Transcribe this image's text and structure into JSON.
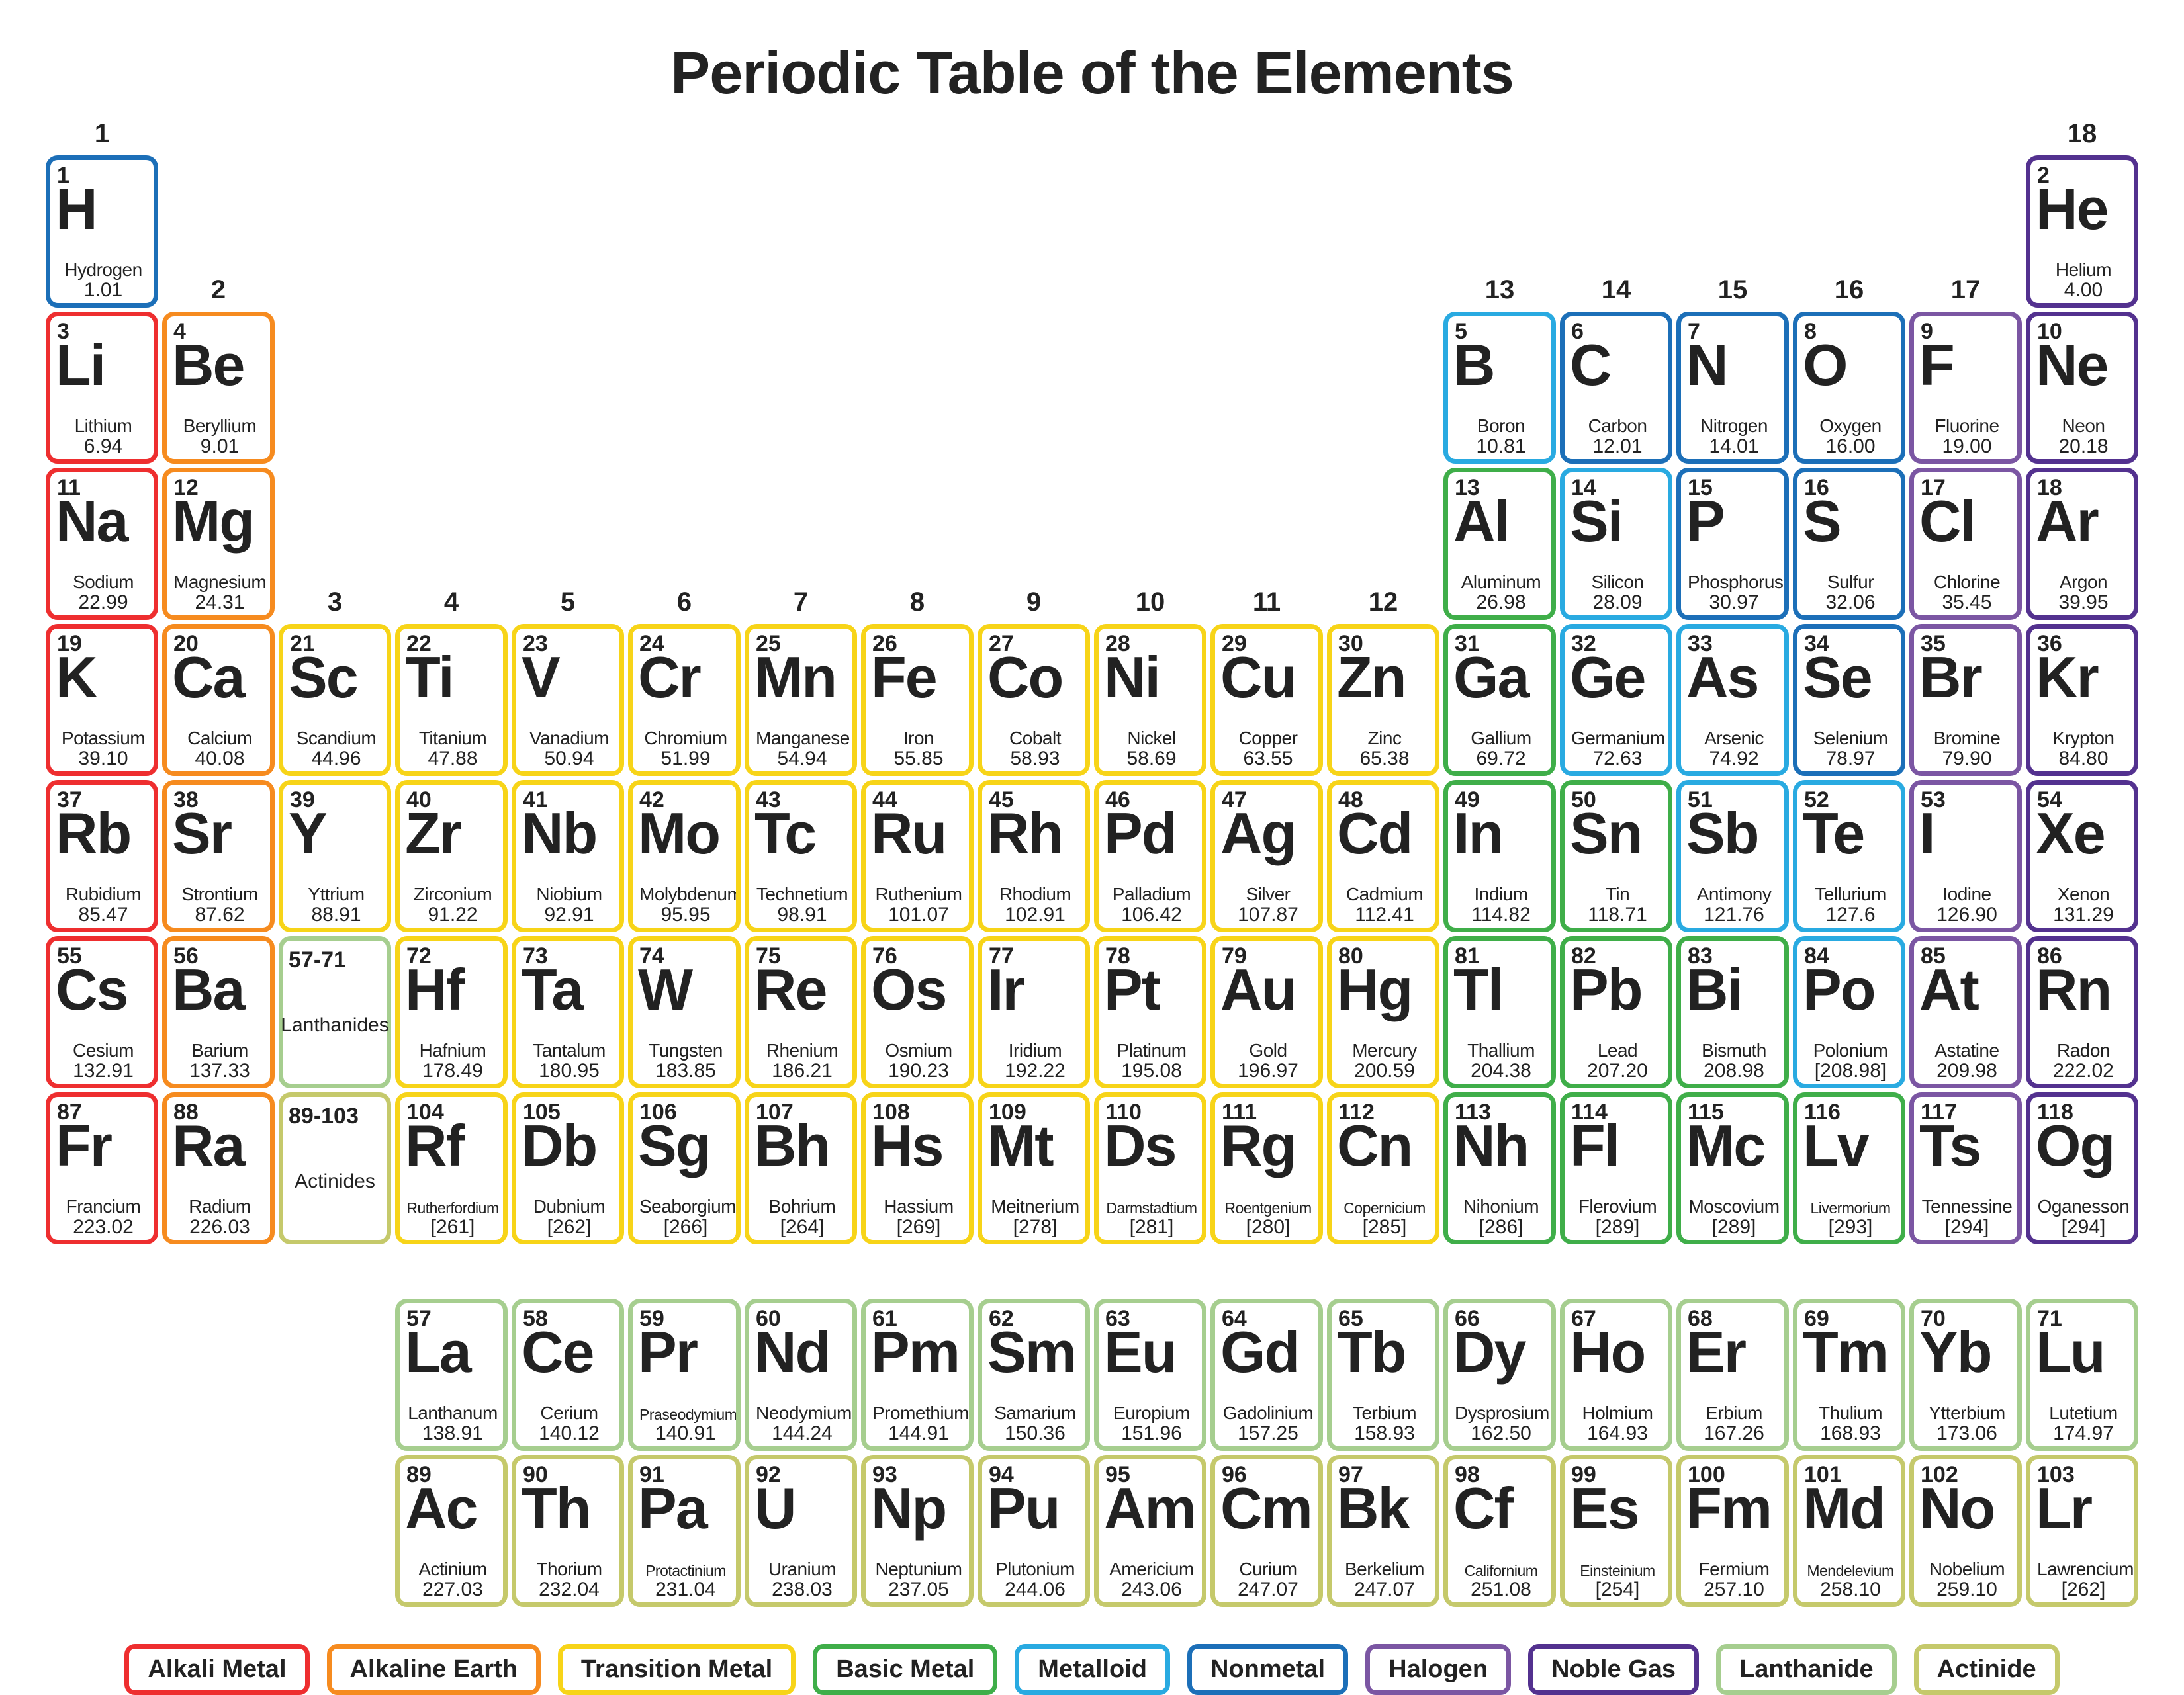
{
  "title": "Periodic Table of the Elements",
  "colors": {
    "alkali": "#ee2e2f",
    "alkaline": "#f68b1f",
    "transition": "#f7d418",
    "basic": "#3fae49",
    "metalloid": "#29aae1",
    "nonmetal": "#1c6fb8",
    "halogen": "#7b56a3",
    "noble": "#53318f",
    "lanthanide": "#a6ce8f",
    "actinide": "#c5c96b"
  },
  "legend": [
    {
      "label": "Alkali Metal",
      "cat": "alkali"
    },
    {
      "label": "Alkaline Earth",
      "cat": "alkaline"
    },
    {
      "label": "Transition Metal",
      "cat": "transition"
    },
    {
      "label": "Basic Metal",
      "cat": "basic"
    },
    {
      "label": "Metalloid",
      "cat": "metalloid"
    },
    {
      "label": "Nonmetal",
      "cat": "nonmetal"
    },
    {
      "label": "Halogen",
      "cat": "halogen"
    },
    {
      "label": "Noble Gas",
      "cat": "noble"
    },
    {
      "label": "Lanthanide",
      "cat": "lanthanide"
    },
    {
      "label": "Actinide",
      "cat": "actinide"
    }
  ],
  "group_labels": {
    "1": "1",
    "2": "2",
    "3": "3",
    "4": "4",
    "5": "5",
    "6": "6",
    "7": "7",
    "8": "8",
    "9": "9",
    "10": "10",
    "11": "11",
    "12": "12",
    "13": "13",
    "14": "14",
    "15": "15",
    "16": "16",
    "17": "17",
    "18": "18"
  },
  "placeholders": {
    "lan": {
      "range": "57-71",
      "label": "Lanthanides",
      "cat": "lanthanide"
    },
    "act": {
      "range": "89-103",
      "label": "Actinides",
      "cat": "actinide"
    }
  },
  "elements": [
    {
      "n": 1,
      "s": "H",
      "nm": "Hydrogen",
      "m": "1.01",
      "c": "nonmetal",
      "row": 1,
      "col": 1
    },
    {
      "n": 2,
      "s": "He",
      "nm": "Helium",
      "m": "4.00",
      "c": "noble",
      "row": 1,
      "col": 18
    },
    {
      "n": 3,
      "s": "Li",
      "nm": "Lithium",
      "m": "6.94",
      "c": "alkali",
      "row": 2,
      "col": 1
    },
    {
      "n": 4,
      "s": "Be",
      "nm": "Beryllium",
      "m": "9.01",
      "c": "alkaline",
      "row": 2,
      "col": 2
    },
    {
      "n": 5,
      "s": "B",
      "nm": "Boron",
      "m": "10.81",
      "c": "metalloid",
      "row": 2,
      "col": 13
    },
    {
      "n": 6,
      "s": "C",
      "nm": "Carbon",
      "m": "12.01",
      "c": "nonmetal",
      "row": 2,
      "col": 14
    },
    {
      "n": 7,
      "s": "N",
      "nm": "Nitrogen",
      "m": "14.01",
      "c": "nonmetal",
      "row": 2,
      "col": 15
    },
    {
      "n": 8,
      "s": "O",
      "nm": "Oxygen",
      "m": "16.00",
      "c": "nonmetal",
      "row": 2,
      "col": 16
    },
    {
      "n": 9,
      "s": "F",
      "nm": "Fluorine",
      "m": "19.00",
      "c": "halogen",
      "row": 2,
      "col": 17
    },
    {
      "n": 10,
      "s": "Ne",
      "nm": "Neon",
      "m": "20.18",
      "c": "noble",
      "row": 2,
      "col": 18
    },
    {
      "n": 11,
      "s": "Na",
      "nm": "Sodium",
      "m": "22.99",
      "c": "alkali",
      "row": 3,
      "col": 1
    },
    {
      "n": 12,
      "s": "Mg",
      "nm": "Magnesium",
      "m": "24.31",
      "c": "alkaline",
      "row": 3,
      "col": 2
    },
    {
      "n": 13,
      "s": "Al",
      "nm": "Aluminum",
      "m": "26.98",
      "c": "basic",
      "row": 3,
      "col": 13
    },
    {
      "n": 14,
      "s": "Si",
      "nm": "Silicon",
      "m": "28.09",
      "c": "metalloid",
      "row": 3,
      "col": 14
    },
    {
      "n": 15,
      "s": "P",
      "nm": "Phosphorus",
      "m": "30.97",
      "c": "nonmetal",
      "row": 3,
      "col": 15
    },
    {
      "n": 16,
      "s": "S",
      "nm": "Sulfur",
      "m": "32.06",
      "c": "nonmetal",
      "row": 3,
      "col": 16
    },
    {
      "n": 17,
      "s": "Cl",
      "nm": "Chlorine",
      "m": "35.45",
      "c": "halogen",
      "row": 3,
      "col": 17
    },
    {
      "n": 18,
      "s": "Ar",
      "nm": "Argon",
      "m": "39.95",
      "c": "noble",
      "row": 3,
      "col": 18
    },
    {
      "n": 19,
      "s": "K",
      "nm": "Potassium",
      "m": "39.10",
      "c": "alkali",
      "row": 4,
      "col": 1
    },
    {
      "n": 20,
      "s": "Ca",
      "nm": "Calcium",
      "m": "40.08",
      "c": "alkaline",
      "row": 4,
      "col": 2
    },
    {
      "n": 21,
      "s": "Sc",
      "nm": "Scandium",
      "m": "44.96",
      "c": "transition",
      "row": 4,
      "col": 3
    },
    {
      "n": 22,
      "s": "Ti",
      "nm": "Titanium",
      "m": "47.88",
      "c": "transition",
      "row": 4,
      "col": 4
    },
    {
      "n": 23,
      "s": "V",
      "nm": "Vanadium",
      "m": "50.94",
      "c": "transition",
      "row": 4,
      "col": 5
    },
    {
      "n": 24,
      "s": "Cr",
      "nm": "Chromium",
      "m": "51.99",
      "c": "transition",
      "row": 4,
      "col": 6
    },
    {
      "n": 25,
      "s": "Mn",
      "nm": "Manganese",
      "m": "54.94",
      "c": "transition",
      "row": 4,
      "col": 7
    },
    {
      "n": 26,
      "s": "Fe",
      "nm": "Iron",
      "m": "55.85",
      "c": "transition",
      "row": 4,
      "col": 8
    },
    {
      "n": 27,
      "s": "Co",
      "nm": "Cobalt",
      "m": "58.93",
      "c": "transition",
      "row": 4,
      "col": 9
    },
    {
      "n": 28,
      "s": "Ni",
      "nm": "Nickel",
      "m": "58.69",
      "c": "transition",
      "row": 4,
      "col": 10
    },
    {
      "n": 29,
      "s": "Cu",
      "nm": "Copper",
      "m": "63.55",
      "c": "transition",
      "row": 4,
      "col": 11
    },
    {
      "n": 30,
      "s": "Zn",
      "nm": "Zinc",
      "m": "65.38",
      "c": "transition",
      "row": 4,
      "col": 12
    },
    {
      "n": 31,
      "s": "Ga",
      "nm": "Gallium",
      "m": "69.72",
      "c": "basic",
      "row": 4,
      "col": 13
    },
    {
      "n": 32,
      "s": "Ge",
      "nm": "Germanium",
      "m": "72.63",
      "c": "metalloid",
      "row": 4,
      "col": 14
    },
    {
      "n": 33,
      "s": "As",
      "nm": "Arsenic",
      "m": "74.92",
      "c": "metalloid",
      "row": 4,
      "col": 15
    },
    {
      "n": 34,
      "s": "Se",
      "nm": "Selenium",
      "m": "78.97",
      "c": "nonmetal",
      "row": 4,
      "col": 16
    },
    {
      "n": 35,
      "s": "Br",
      "nm": "Bromine",
      "m": "79.90",
      "c": "halogen",
      "row": 4,
      "col": 17
    },
    {
      "n": 36,
      "s": "Kr",
      "nm": "Krypton",
      "m": "84.80",
      "c": "noble",
      "row": 4,
      "col": 18
    },
    {
      "n": 37,
      "s": "Rb",
      "nm": "Rubidium",
      "m": "85.47",
      "c": "alkali",
      "row": 5,
      "col": 1
    },
    {
      "n": 38,
      "s": "Sr",
      "nm": "Strontium",
      "m": "87.62",
      "c": "alkaline",
      "row": 5,
      "col": 2
    },
    {
      "n": 39,
      "s": "Y",
      "nm": "Yttrium",
      "m": "88.91",
      "c": "transition",
      "row": 5,
      "col": 3
    },
    {
      "n": 40,
      "s": "Zr",
      "nm": "Zirconium",
      "m": "91.22",
      "c": "transition",
      "row": 5,
      "col": 4
    },
    {
      "n": 41,
      "s": "Nb",
      "nm": "Niobium",
      "m": "92.91",
      "c": "transition",
      "row": 5,
      "col": 5
    },
    {
      "n": 42,
      "s": "Mo",
      "nm": "Molybdenum",
      "m": "95.95",
      "c": "transition",
      "row": 5,
      "col": 6
    },
    {
      "n": 43,
      "s": "Tc",
      "nm": "Technetium",
      "m": "98.91",
      "c": "transition",
      "row": 5,
      "col": 7
    },
    {
      "n": 44,
      "s": "Ru",
      "nm": "Ruthenium",
      "m": "101.07",
      "c": "transition",
      "row": 5,
      "col": 8
    },
    {
      "n": 45,
      "s": "Rh",
      "nm": "Rhodium",
      "m": "102.91",
      "c": "transition",
      "row": 5,
      "col": 9
    },
    {
      "n": 46,
      "s": "Pd",
      "nm": "Palladium",
      "m": "106.42",
      "c": "transition",
      "row": 5,
      "col": 10
    },
    {
      "n": 47,
      "s": "Ag",
      "nm": "Silver",
      "m": "107.87",
      "c": "transition",
      "row": 5,
      "col": 11
    },
    {
      "n": 48,
      "s": "Cd",
      "nm": "Cadmium",
      "m": "112.41",
      "c": "transition",
      "row": 5,
      "col": 12
    },
    {
      "n": 49,
      "s": "In",
      "nm": "Indium",
      "m": "114.82",
      "c": "basic",
      "row": 5,
      "col": 13
    },
    {
      "n": 50,
      "s": "Sn",
      "nm": "Tin",
      "m": "118.71",
      "c": "basic",
      "row": 5,
      "col": 14
    },
    {
      "n": 51,
      "s": "Sb",
      "nm": "Antimony",
      "m": "121.76",
      "c": "metalloid",
      "row": 5,
      "col": 15
    },
    {
      "n": 52,
      "s": "Te",
      "nm": "Tellurium",
      "m": "127.6",
      "c": "metalloid",
      "row": 5,
      "col": 16
    },
    {
      "n": 53,
      "s": "I",
      "nm": "Iodine",
      "m": "126.90",
      "c": "halogen",
      "row": 5,
      "col": 17
    },
    {
      "n": 54,
      "s": "Xe",
      "nm": "Xenon",
      "m": "131.29",
      "c": "noble",
      "row": 5,
      "col": 18
    },
    {
      "n": 55,
      "s": "Cs",
      "nm": "Cesium",
      "m": "132.91",
      "c": "alkali",
      "row": 6,
      "col": 1
    },
    {
      "n": 56,
      "s": "Ba",
      "nm": "Barium",
      "m": "137.33",
      "c": "alkaline",
      "row": 6,
      "col": 2
    },
    {
      "n": 72,
      "s": "Hf",
      "nm": "Hafnium",
      "m": "178.49",
      "c": "transition",
      "row": 6,
      "col": 4
    },
    {
      "n": 73,
      "s": "Ta",
      "nm": "Tantalum",
      "m": "180.95",
      "c": "transition",
      "row": 6,
      "col": 5
    },
    {
      "n": 74,
      "s": "W",
      "nm": "Tungsten",
      "m": "183.85",
      "c": "transition",
      "row": 6,
      "col": 6
    },
    {
      "n": 75,
      "s": "Re",
      "nm": "Rhenium",
      "m": "186.21",
      "c": "transition",
      "row": 6,
      "col": 7
    },
    {
      "n": 76,
      "s": "Os",
      "nm": "Osmium",
      "m": "190.23",
      "c": "transition",
      "row": 6,
      "col": 8
    },
    {
      "n": 77,
      "s": "Ir",
      "nm": "Iridium",
      "m": "192.22",
      "c": "transition",
      "row": 6,
      "col": 9
    },
    {
      "n": 78,
      "s": "Pt",
      "nm": "Platinum",
      "m": "195.08",
      "c": "transition",
      "row": 6,
      "col": 10
    },
    {
      "n": 79,
      "s": "Au",
      "nm": "Gold",
      "m": "196.97",
      "c": "transition",
      "row": 6,
      "col": 11
    },
    {
      "n": 80,
      "s": "Hg",
      "nm": "Mercury",
      "m": "200.59",
      "c": "transition",
      "row": 6,
      "col": 12
    },
    {
      "n": 81,
      "s": "Tl",
      "nm": "Thallium",
      "m": "204.38",
      "c": "basic",
      "row": 6,
      "col": 13
    },
    {
      "n": 82,
      "s": "Pb",
      "nm": "Lead",
      "m": "207.20",
      "c": "basic",
      "row": 6,
      "col": 14
    },
    {
      "n": 83,
      "s": "Bi",
      "nm": "Bismuth",
      "m": "208.98",
      "c": "basic",
      "row": 6,
      "col": 15
    },
    {
      "n": 84,
      "s": "Po",
      "nm": "Polonium",
      "m": "[208.98]",
      "c": "metalloid",
      "row": 6,
      "col": 16
    },
    {
      "n": 85,
      "s": "At",
      "nm": "Astatine",
      "m": "209.98",
      "c": "halogen",
      "row": 6,
      "col": 17
    },
    {
      "n": 86,
      "s": "Rn",
      "nm": "Radon",
      "m": "222.02",
      "c": "noble",
      "row": 6,
      "col": 18
    },
    {
      "n": 87,
      "s": "Fr",
      "nm": "Francium",
      "m": "223.02",
      "c": "alkali",
      "row": 7,
      "col": 1
    },
    {
      "n": 88,
      "s": "Ra",
      "nm": "Radium",
      "m": "226.03",
      "c": "alkaline",
      "row": 7,
      "col": 2
    },
    {
      "n": 104,
      "s": "Rf",
      "nm": "Rutherfordium",
      "m": "[261]",
      "c": "transition",
      "row": 7,
      "col": 4
    },
    {
      "n": 105,
      "s": "Db",
      "nm": "Dubnium",
      "m": "[262]",
      "c": "transition",
      "row": 7,
      "col": 5
    },
    {
      "n": 106,
      "s": "Sg",
      "nm": "Seaborgium",
      "m": "[266]",
      "c": "transition",
      "row": 7,
      "col": 6
    },
    {
      "n": 107,
      "s": "Bh",
      "nm": "Bohrium",
      "m": "[264]",
      "c": "transition",
      "row": 7,
      "col": 7
    },
    {
      "n": 108,
      "s": "Hs",
      "nm": "Hassium",
      "m": "[269]",
      "c": "transition",
      "row": 7,
      "col": 8
    },
    {
      "n": 109,
      "s": "Mt",
      "nm": "Meitnerium",
      "m": "[278]",
      "c": "transition",
      "row": 7,
      "col": 9
    },
    {
      "n": 110,
      "s": "Ds",
      "nm": "Darmstadtium",
      "m": "[281]",
      "c": "transition",
      "row": 7,
      "col": 10
    },
    {
      "n": 111,
      "s": "Rg",
      "nm": "Roentgenium",
      "m": "[280]",
      "c": "transition",
      "row": 7,
      "col": 11
    },
    {
      "n": 112,
      "s": "Cn",
      "nm": "Copernicium",
      "m": "[285]",
      "c": "transition",
      "row": 7,
      "col": 12
    },
    {
      "n": 113,
      "s": "Nh",
      "nm": "Nihonium",
      "m": "[286]",
      "c": "basic",
      "row": 7,
      "col": 13
    },
    {
      "n": 114,
      "s": "Fl",
      "nm": "Flerovium",
      "m": "[289]",
      "c": "basic",
      "row": 7,
      "col": 14
    },
    {
      "n": 115,
      "s": "Mc",
      "nm": "Moscovium",
      "m": "[289]",
      "c": "basic",
      "row": 7,
      "col": 15
    },
    {
      "n": 116,
      "s": "Lv",
      "nm": "Livermorium",
      "m": "[293]",
      "c": "basic",
      "row": 7,
      "col": 16
    },
    {
      "n": 117,
      "s": "Ts",
      "nm": "Tennessine",
      "m": "[294]",
      "c": "halogen",
      "row": 7,
      "col": 17
    },
    {
      "n": 118,
      "s": "Og",
      "nm": "Oganesson",
      "m": "[294]",
      "c": "noble",
      "row": 7,
      "col": 18
    },
    {
      "n": 57,
      "s": "La",
      "nm": "Lanthanum",
      "m": "138.91",
      "c": "lanthanide",
      "row": 9,
      "col": 4
    },
    {
      "n": 58,
      "s": "Ce",
      "nm": "Cerium",
      "m": "140.12",
      "c": "lanthanide",
      "row": 9,
      "col": 5
    },
    {
      "n": 59,
      "s": "Pr",
      "nm": "Praseodymium",
      "m": "140.91",
      "c": "lanthanide",
      "row": 9,
      "col": 6
    },
    {
      "n": 60,
      "s": "Nd",
      "nm": "Neodymium",
      "m": "144.24",
      "c": "lanthanide",
      "row": 9,
      "col": 7
    },
    {
      "n": 61,
      "s": "Pm",
      "nm": "Promethium",
      "m": "144.91",
      "c": "lanthanide",
      "row": 9,
      "col": 8
    },
    {
      "n": 62,
      "s": "Sm",
      "nm": "Samarium",
      "m": "150.36",
      "c": "lanthanide",
      "row": 9,
      "col": 9
    },
    {
      "n": 63,
      "s": "Eu",
      "nm": "Europium",
      "m": "151.96",
      "c": "lanthanide",
      "row": 9,
      "col": 10
    },
    {
      "n": 64,
      "s": "Gd",
      "nm": "Gadolinium",
      "m": "157.25",
      "c": "lanthanide",
      "row": 9,
      "col": 11
    },
    {
      "n": 65,
      "s": "Tb",
      "nm": "Terbium",
      "m": "158.93",
      "c": "lanthanide",
      "row": 9,
      "col": 12
    },
    {
      "n": 66,
      "s": "Dy",
      "nm": "Dysprosium",
      "m": "162.50",
      "c": "lanthanide",
      "row": 9,
      "col": 13
    },
    {
      "n": 67,
      "s": "Ho",
      "nm": "Holmium",
      "m": "164.93",
      "c": "lanthanide",
      "row": 9,
      "col": 14
    },
    {
      "n": 68,
      "s": "Er",
      "nm": "Erbium",
      "m": "167.26",
      "c": "lanthanide",
      "row": 9,
      "col": 15
    },
    {
      "n": 69,
      "s": "Tm",
      "nm": "Thulium",
      "m": "168.93",
      "c": "lanthanide",
      "row": 9,
      "col": 16
    },
    {
      "n": 70,
      "s": "Yb",
      "nm": "Ytterbium",
      "m": "173.06",
      "c": "lanthanide",
      "row": 9,
      "col": 17
    },
    {
      "n": 71,
      "s": "Lu",
      "nm": "Lutetium",
      "m": "174.97",
      "c": "lanthanide",
      "row": 9,
      "col": 18
    },
    {
      "n": 89,
      "s": "Ac",
      "nm": "Actinium",
      "m": "227.03",
      "c": "actinide",
      "row": 10,
      "col": 4
    },
    {
      "n": 90,
      "s": "Th",
      "nm": "Thorium",
      "m": "232.04",
      "c": "actinide",
      "row": 10,
      "col": 5
    },
    {
      "n": 91,
      "s": "Pa",
      "nm": "Protactinium",
      "m": "231.04",
      "c": "actinide",
      "row": 10,
      "col": 6
    },
    {
      "n": 92,
      "s": "U",
      "nm": "Uranium",
      "m": "238.03",
      "c": "actinide",
      "row": 10,
      "col": 7
    },
    {
      "n": 93,
      "s": "Np",
      "nm": "Neptunium",
      "m": "237.05",
      "c": "actinide",
      "row": 10,
      "col": 8
    },
    {
      "n": 94,
      "s": "Pu",
      "nm": "Plutonium",
      "m": "244.06",
      "c": "actinide",
      "row": 10,
      "col": 9
    },
    {
      "n": 95,
      "s": "Am",
      "nm": "Americium",
      "m": "243.06",
      "c": "actinide",
      "row": 10,
      "col": 10
    },
    {
      "n": 96,
      "s": "Cm",
      "nm": "Curium",
      "m": "247.07",
      "c": "actinide",
      "row": 10,
      "col": 11
    },
    {
      "n": 97,
      "s": "Bk",
      "nm": "Berkelium",
      "m": "247.07",
      "c": "actinide",
      "row": 10,
      "col": 12
    },
    {
      "n": 98,
      "s": "Cf",
      "nm": "Californium",
      "m": "251.08",
      "c": "actinide",
      "row": 10,
      "col": 13
    },
    {
      "n": 99,
      "s": "Es",
      "nm": "Einsteinium",
      "m": "[254]",
      "c": "actinide",
      "row": 10,
      "col": 14
    },
    {
      "n": 100,
      "s": "Fm",
      "nm": "Fermium",
      "m": "257.10",
      "c": "actinide",
      "row": 10,
      "col": 15
    },
    {
      "n": 101,
      "s": "Md",
      "nm": "Mendelevium",
      "m": "258.10",
      "c": "actinide",
      "row": 10,
      "col": 16
    },
    {
      "n": 102,
      "s": "No",
      "nm": "Nobelium",
      "m": "259.10",
      "c": "actinide",
      "row": 10,
      "col": 17
    },
    {
      "n": 103,
      "s": "Lr",
      "nm": "Lawrencium",
      "m": "[262]",
      "c": "actinide",
      "row": 10,
      "col": 18
    }
  ],
  "group_label_rows": {
    "1": 1,
    "18": 1,
    "2": 2,
    "13": 2,
    "14": 2,
    "15": 2,
    "16": 2,
    "17": 2,
    "3": 4,
    "4": 4,
    "5": 4,
    "6": 4,
    "7": 4,
    "8": 4,
    "9": 4,
    "10": 4,
    "11": 4,
    "12": 4
  }
}
